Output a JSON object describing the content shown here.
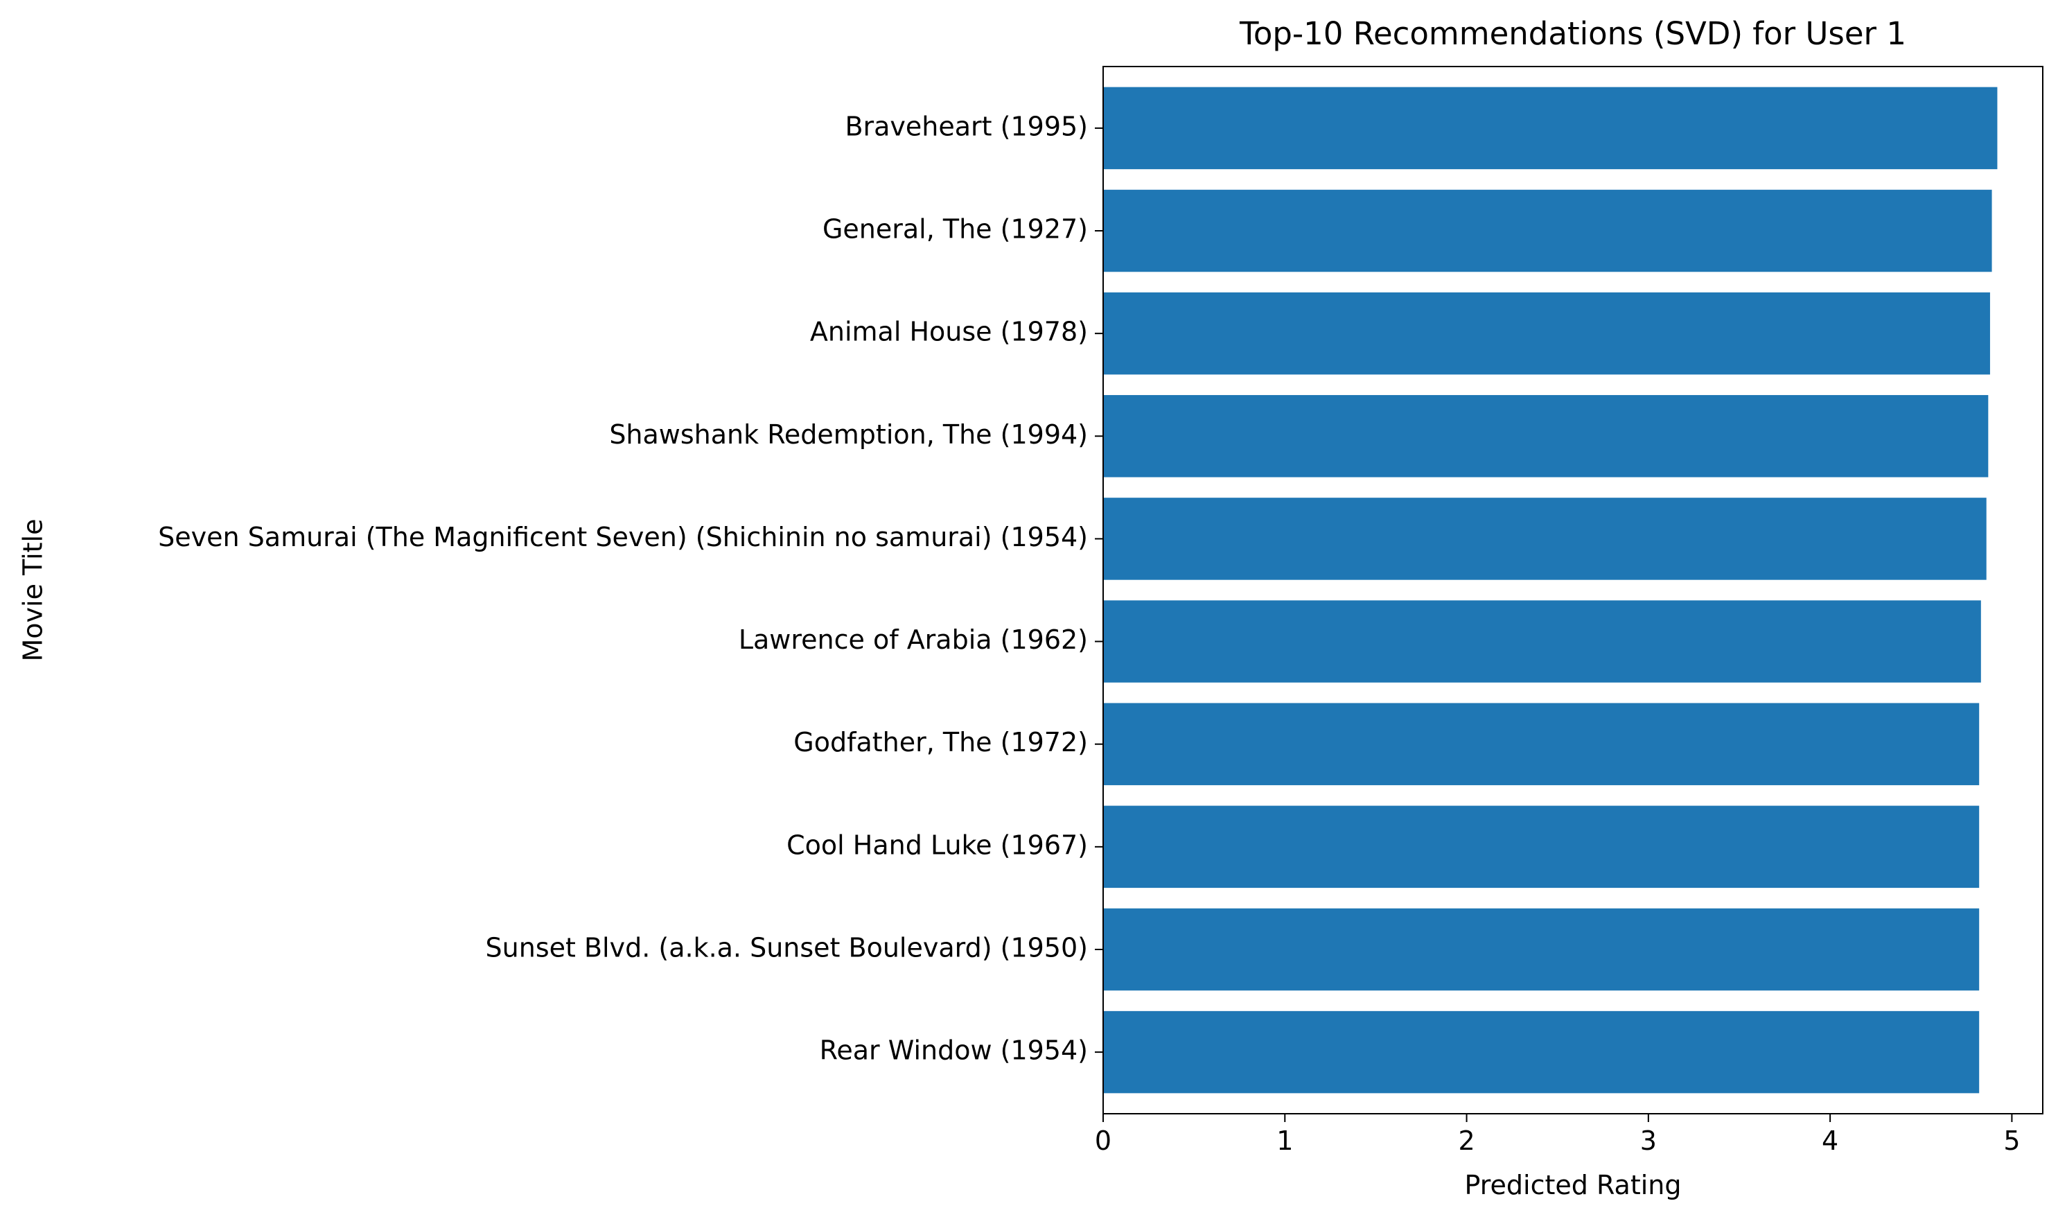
{
  "chart_data": {
    "type": "bar",
    "orientation": "horizontal",
    "title": "Top-10 Recommendations (SVD) for User 1",
    "xlabel": "Predicted Rating",
    "ylabel": "Movie Title",
    "xlim": [
      0,
      5.17
    ],
    "xticks": [
      0,
      1,
      2,
      3,
      4,
      5
    ],
    "grid": false,
    "bar_color": "#1f77b4",
    "categories": [
      "Braveheart (1995)",
      "General, The (1927)",
      "Animal House (1978)",
      "Shawshank Redemption, The (1994)",
      "Seven Samurai (The Magnificent Seven) (Shichinin no samurai) (1954)",
      "Lawrence of Arabia (1962)",
      "Godfather, The (1972)",
      "Cool Hand Luke (1967)",
      "Sunset Blvd. (a.k.a. Sunset Boulevard) (1950)",
      "Rear Window (1954)"
    ],
    "values": [
      4.92,
      4.89,
      4.88,
      4.87,
      4.86,
      4.83,
      4.82,
      4.82,
      4.82,
      4.82
    ]
  }
}
